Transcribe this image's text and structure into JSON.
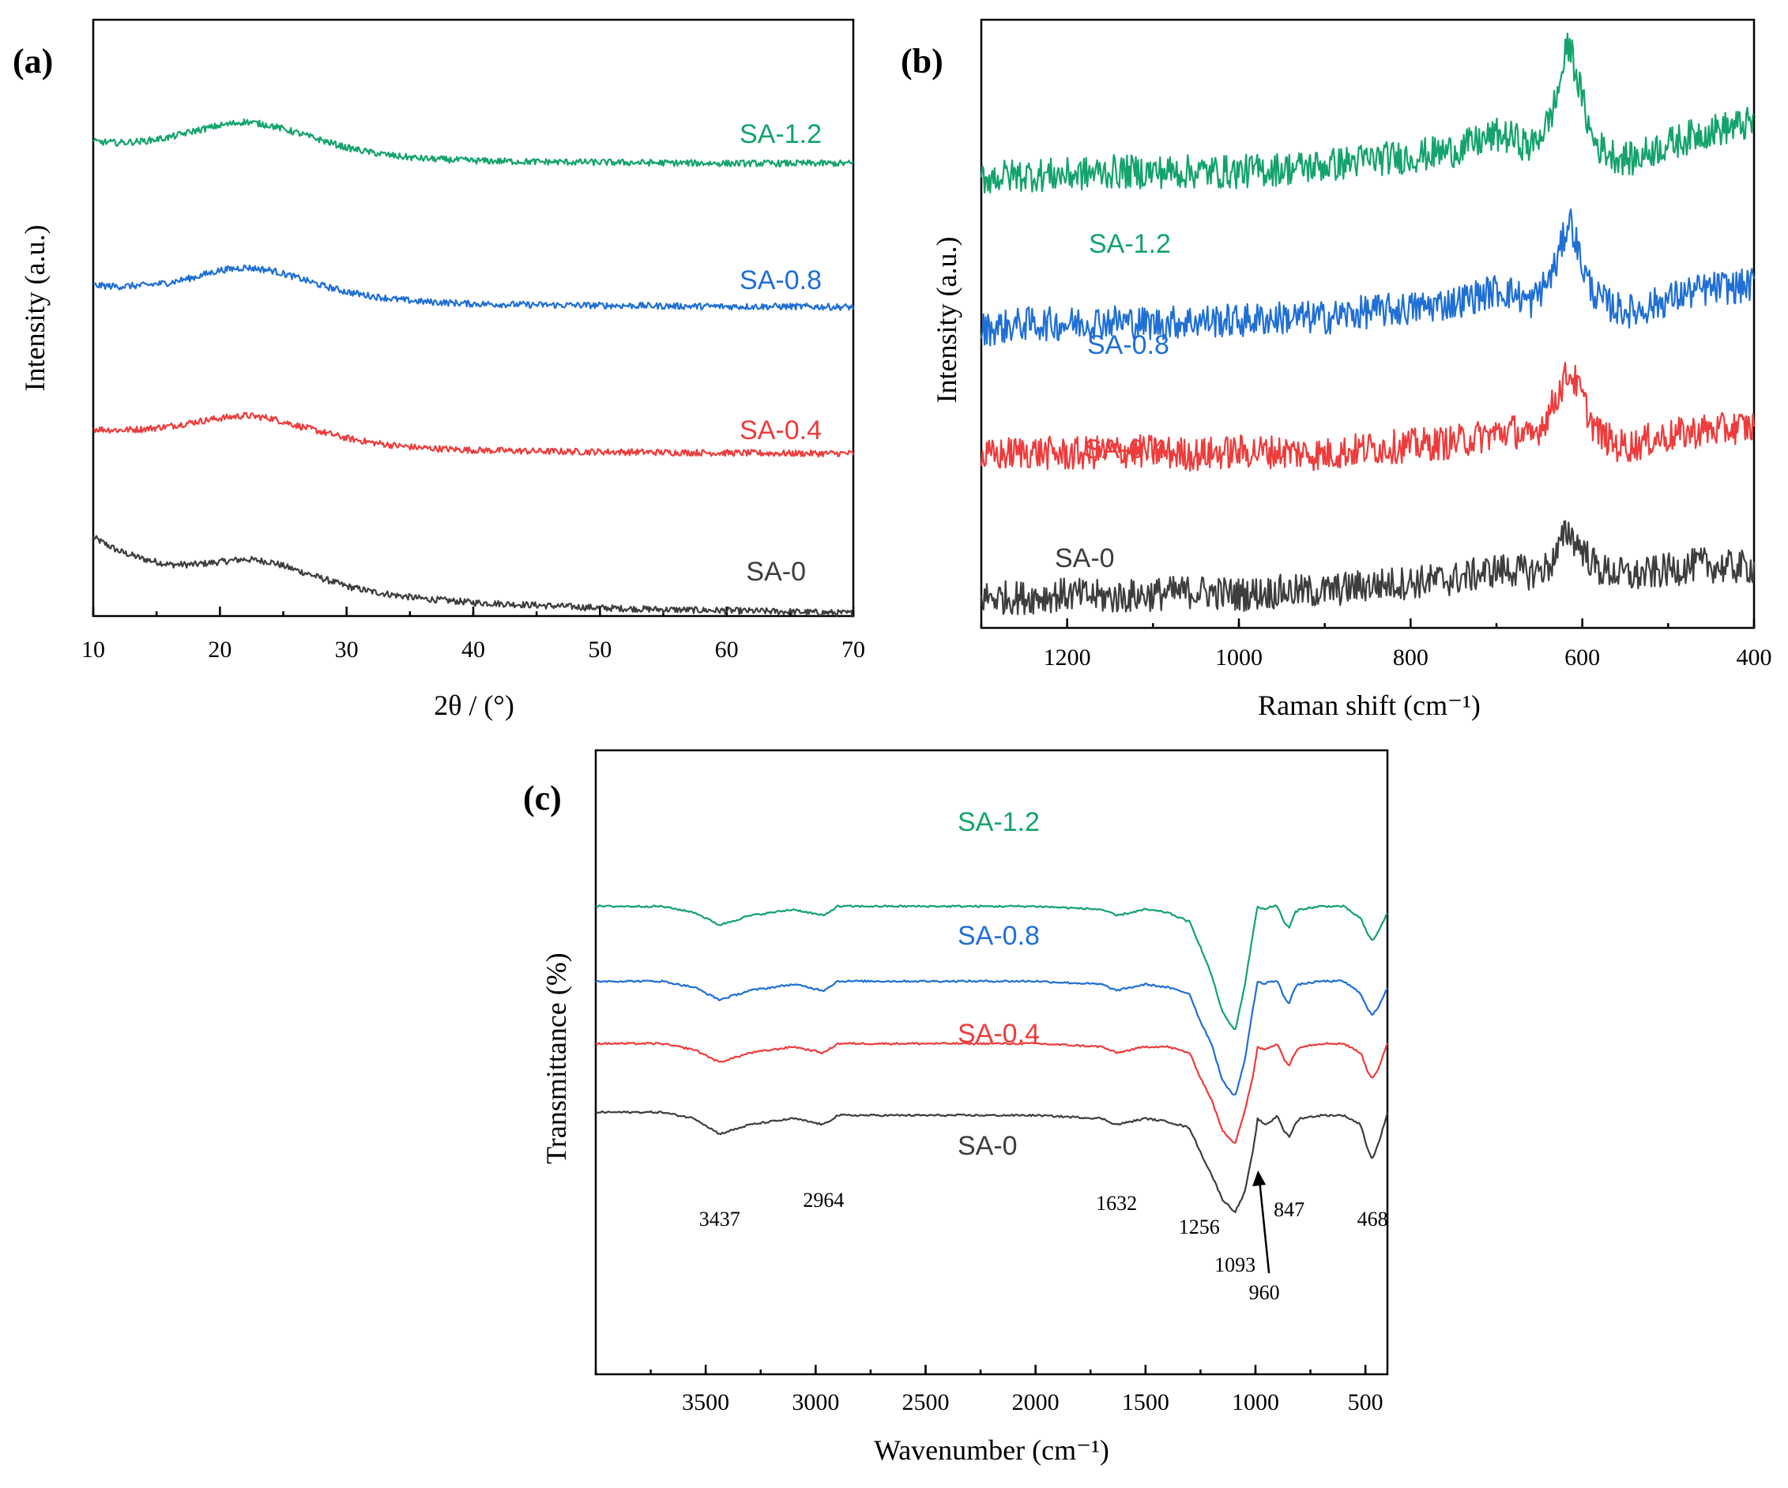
{
  "colors": {
    "SA-0": "#3d3d3d",
    "SA-0.4": "#ee3b3b",
    "SA-0.8": "#1f6fd4",
    "SA-1.2": "#13a36b"
  },
  "chart_data": [
    {
      "panel": "(a)",
      "type": "line",
      "xlabel": "2θ / (°)",
      "ylabel": "Intensity (a.u.)",
      "xlim": [
        10,
        70
      ],
      "ylim": [
        0,
        11
      ],
      "xticks": [
        "10",
        "20",
        "30",
        "40",
        "50",
        "60",
        "70"
      ],
      "x_reversed": false,
      "grid": false,
      "y_tick_labels": false,
      "series": [
        {
          "name": "SA-0",
          "x": [
            10,
            12,
            14,
            16,
            18,
            20,
            22,
            24,
            26,
            28,
            30,
            32,
            34,
            36,
            40,
            45,
            50,
            55,
            60,
            65,
            70
          ],
          "values": [
            1.45,
            1.2,
            1.05,
            0.95,
            0.95,
            1.0,
            1.05,
            1.0,
            0.85,
            0.7,
            0.55,
            0.45,
            0.38,
            0.32,
            0.25,
            0.2,
            0.15,
            0.12,
            0.1,
            0.08,
            0.05
          ]
        },
        {
          "name": "SA-0.4",
          "x": [
            10,
            12,
            14,
            16,
            18,
            20,
            22,
            24,
            26,
            28,
            30,
            32,
            34,
            36,
            40,
            45,
            50,
            55,
            60,
            65,
            70
          ],
          "values": [
            3.45,
            3.43,
            3.45,
            3.5,
            3.58,
            3.65,
            3.7,
            3.65,
            3.52,
            3.4,
            3.28,
            3.2,
            3.14,
            3.1,
            3.06,
            3.04,
            3.03,
            3.02,
            3.01,
            3.0,
            3.0
          ]
        },
        {
          "name": "SA-0.8",
          "x": [
            10,
            12,
            14,
            16,
            18,
            20,
            22,
            24,
            26,
            28,
            30,
            32,
            34,
            36,
            40,
            45,
            50,
            55,
            60,
            65,
            70
          ],
          "values": [
            6.1,
            6.08,
            6.1,
            6.15,
            6.25,
            6.38,
            6.43,
            6.38,
            6.25,
            6.1,
            5.98,
            5.9,
            5.84,
            5.8,
            5.76,
            5.74,
            5.73,
            5.72,
            5.71,
            5.71,
            5.7
          ]
        },
        {
          "name": "SA-1.2",
          "x": [
            10,
            12,
            14,
            16,
            18,
            20,
            22,
            24,
            26,
            28,
            30,
            32,
            34,
            36,
            40,
            45,
            50,
            55,
            60,
            65,
            70
          ],
          "values": [
            8.75,
            8.73,
            8.76,
            8.83,
            8.95,
            9.05,
            9.12,
            9.05,
            8.92,
            8.78,
            8.64,
            8.55,
            8.48,
            8.44,
            8.4,
            8.38,
            8.37,
            8.36,
            8.35,
            8.35,
            8.35
          ]
        }
      ],
      "annotations": [
        {
          "text": "SA-0",
          "series": "SA-0"
        },
        {
          "text": "SA-0.4",
          "series": "SA-0.4"
        },
        {
          "text": "SA-0.8",
          "series": "SA-0.8"
        },
        {
          "text": "SA-1.2",
          "series": "SA-1.2"
        }
      ]
    },
    {
      "panel": "(b)",
      "type": "line",
      "xlabel": "Raman shift (cm⁻¹)",
      "ylabel": "Intensity (a.u.)",
      "xlim": [
        1300,
        400
      ],
      "ylim": [
        0,
        10
      ],
      "xticks": [
        "1200",
        "1000",
        "800",
        "600",
        "400"
      ],
      "x_reversed": true,
      "grid": false,
      "y_tick_labels": false,
      "series": [
        {
          "name": "SA-0",
          "x": [
            1300,
            1250,
            1200,
            1150,
            1100,
            1050,
            1000,
            950,
            900,
            850,
            800,
            750,
            700,
            680,
            660,
            640,
            630,
            620,
            615,
            610,
            600,
            590,
            580,
            560,
            540,
            520,
            500,
            480,
            460,
            440,
            420,
            400
          ],
          "values": [
            0.5,
            0.5,
            0.55,
            0.5,
            0.55,
            0.6,
            0.55,
            0.6,
            0.6,
            0.7,
            0.75,
            0.8,
            0.95,
            0.95,
            0.9,
            1.0,
            1.2,
            1.55,
            1.6,
            1.45,
            1.3,
            1.1,
            0.95,
            0.9,
            0.85,
            0.9,
            0.95,
            1.0,
            1.05,
            1.0,
            1.0,
            1.0
          ]
        },
        {
          "name": "SA-0.4",
          "x": [
            1300,
            1250,
            1200,
            1150,
            1100,
            1050,
            1000,
            950,
            900,
            850,
            800,
            750,
            700,
            680,
            660,
            640,
            630,
            620,
            615,
            610,
            600,
            590,
            580,
            560,
            540,
            520,
            500,
            480,
            460,
            440,
            420,
            400
          ],
          "values": [
            2.8,
            2.9,
            2.85,
            2.9,
            2.9,
            2.85,
            2.9,
            2.9,
            2.85,
            2.95,
            3.0,
            3.05,
            3.2,
            3.25,
            3.1,
            3.5,
            3.8,
            4.1,
            4.2,
            4.1,
            3.8,
            3.4,
            3.2,
            3.0,
            3.0,
            3.1,
            3.15,
            3.2,
            3.25,
            3.25,
            3.3,
            3.3
          ]
        },
        {
          "name": "SA-0.8",
          "x": [
            1300,
            1250,
            1200,
            1150,
            1100,
            1050,
            1000,
            950,
            900,
            850,
            800,
            750,
            700,
            680,
            660,
            640,
            630,
            620,
            615,
            610,
            600,
            590,
            580,
            560,
            540,
            520,
            500,
            480,
            460,
            440,
            420,
            400
          ],
          "values": [
            4.9,
            5.0,
            5.0,
            5.05,
            5.0,
            5.05,
            5.05,
            5.1,
            5.1,
            5.2,
            5.25,
            5.35,
            5.55,
            5.5,
            5.35,
            5.7,
            6.0,
            6.5,
            6.75,
            6.5,
            5.95,
            5.6,
            5.4,
            5.25,
            5.2,
            5.3,
            5.4,
            5.5,
            5.55,
            5.6,
            5.6,
            5.65
          ]
        },
        {
          "name": "SA-1.2",
          "x": [
            1300,
            1250,
            1200,
            1150,
            1100,
            1050,
            1000,
            950,
            900,
            850,
            800,
            750,
            700,
            680,
            660,
            640,
            630,
            620,
            615,
            610,
            600,
            590,
            580,
            560,
            540,
            520,
            500,
            480,
            460,
            440,
            420,
            400
          ],
          "values": [
            7.4,
            7.45,
            7.45,
            7.5,
            7.5,
            7.5,
            7.5,
            7.55,
            7.6,
            7.7,
            7.75,
            7.85,
            8.1,
            8.05,
            7.9,
            8.3,
            8.7,
            9.4,
            9.6,
            9.3,
            8.7,
            8.1,
            7.9,
            7.75,
            7.7,
            7.85,
            7.95,
            8.05,
            8.15,
            8.2,
            8.25,
            8.3
          ]
        }
      ],
      "annotations": [
        {
          "text": "SA-0",
          "series": "SA-0"
        },
        {
          "text": "SA-0.4",
          "series": "SA-0.4"
        },
        {
          "text": "SA-0.8",
          "series": "SA-0.8"
        },
        {
          "text": "SA-1.2",
          "series": "SA-1.2"
        }
      ]
    },
    {
      "panel": "(c)",
      "type": "line",
      "xlabel": "Wavenumber (cm⁻¹)",
      "ylabel": "Transmittance (%)",
      "xlim": [
        4000,
        400
      ],
      "ylim": [
        0,
        10
      ],
      "xticks": [
        "3500",
        "3000",
        "2500",
        "2000",
        "1500",
        "1000",
        "500"
      ],
      "x_reversed": true,
      "grid": false,
      "y_tick_labels": false,
      "series": [
        {
          "name": "SA-0",
          "x": [
            4000,
            3700,
            3550,
            3437,
            3300,
            3100,
            2964,
            2900,
            2700,
            2500,
            2000,
            1700,
            1632,
            1500,
            1400,
            1300,
            1256,
            1200,
            1150,
            1093,
            1050,
            1010,
            990,
            960,
            930,
            900,
            870,
            847,
            820,
            800,
            700,
            600,
            520,
            490,
            468,
            440,
            400
          ],
          "values": [
            4.2,
            4.2,
            4.1,
            3.85,
            4.0,
            4.1,
            4.0,
            4.15,
            4.15,
            4.15,
            4.15,
            4.1,
            4.0,
            4.1,
            4.05,
            3.95,
            3.6,
            3.2,
            2.8,
            2.6,
            2.9,
            3.6,
            4.1,
            4.0,
            4.05,
            4.15,
            3.9,
            3.8,
            4.0,
            4.1,
            4.15,
            4.15,
            4.0,
            3.6,
            3.45,
            3.7,
            4.2
          ]
        },
        {
          "name": "SA-0.4",
          "x": [
            4000,
            3700,
            3550,
            3437,
            3300,
            3100,
            2964,
            2900,
            2700,
            2500,
            2000,
            1700,
            1632,
            1500,
            1400,
            1300,
            1256,
            1200,
            1150,
            1093,
            1050,
            1010,
            990,
            960,
            930,
            900,
            870,
            847,
            820,
            800,
            700,
            600,
            520,
            490,
            468,
            440,
            400
          ],
          "values": [
            5.3,
            5.3,
            5.2,
            5.0,
            5.15,
            5.25,
            5.15,
            5.3,
            5.3,
            5.3,
            5.3,
            5.25,
            5.15,
            5.25,
            5.25,
            5.15,
            4.8,
            4.4,
            3.9,
            3.7,
            4.2,
            4.8,
            5.25,
            5.2,
            5.25,
            5.3,
            5.05,
            4.95,
            5.15,
            5.25,
            5.3,
            5.3,
            5.15,
            4.85,
            4.75,
            4.9,
            5.3
          ]
        },
        {
          "name": "SA-0.8",
          "x": [
            4000,
            3700,
            3550,
            3437,
            3300,
            3100,
            2964,
            2900,
            2700,
            2500,
            2000,
            1700,
            1632,
            1500,
            1400,
            1300,
            1256,
            1200,
            1150,
            1093,
            1050,
            1010,
            990,
            960,
            930,
            900,
            870,
            847,
            820,
            800,
            700,
            600,
            520,
            490,
            468,
            440,
            400
          ],
          "values": [
            6.3,
            6.3,
            6.2,
            6.0,
            6.15,
            6.25,
            6.15,
            6.3,
            6.3,
            6.3,
            6.3,
            6.25,
            6.15,
            6.25,
            6.2,
            6.1,
            5.7,
            5.3,
            4.7,
            4.45,
            5.0,
            5.9,
            6.3,
            6.25,
            6.3,
            6.3,
            6.05,
            5.95,
            6.2,
            6.25,
            6.3,
            6.3,
            6.1,
            5.85,
            5.75,
            5.9,
            6.2
          ]
        },
        {
          "name": "SA-1.2",
          "x": [
            4000,
            3700,
            3550,
            3437,
            3300,
            3100,
            2964,
            2900,
            2700,
            2500,
            2000,
            1700,
            1632,
            1500,
            1400,
            1300,
            1256,
            1200,
            1150,
            1093,
            1050,
            1010,
            990,
            960,
            930,
            900,
            870,
            847,
            820,
            800,
            700,
            600,
            520,
            490,
            468,
            440,
            400
          ],
          "values": [
            7.5,
            7.5,
            7.4,
            7.2,
            7.35,
            7.45,
            7.35,
            7.5,
            7.5,
            7.5,
            7.5,
            7.45,
            7.35,
            7.45,
            7.4,
            7.25,
            6.9,
            6.4,
            5.8,
            5.5,
            6.2,
            7.1,
            7.5,
            7.45,
            7.5,
            7.5,
            7.25,
            7.15,
            7.4,
            7.45,
            7.5,
            7.5,
            7.3,
            7.05,
            6.95,
            7.1,
            7.4
          ]
        }
      ],
      "annotations": [
        {
          "text": "SA-0",
          "series": "SA-0"
        },
        {
          "text": "SA-0.4",
          "series": "SA-0.4"
        },
        {
          "text": "SA-0.8",
          "series": "SA-0.8"
        },
        {
          "text": "SA-1.2",
          "series": "SA-1.2"
        }
      ],
      "peak_labels": [
        "3437",
        "2964",
        "1632",
        "1256",
        "1093",
        "960",
        "847",
        "468"
      ]
    }
  ]
}
